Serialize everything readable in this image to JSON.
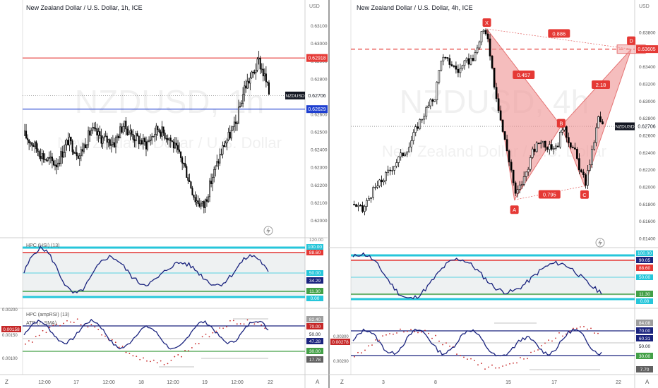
{
  "colors": {
    "bull": "#ffffff",
    "bear": "#000000",
    "red_level": "#e53935",
    "blue_level": "#1e3fd0",
    "dashed": "#e53935",
    "pattern_fill": "#ef9a9a",
    "pattern_stroke": "#e57373",
    "osc_line": "#1a237e",
    "cyan": "#26c6da",
    "green": "#43a047",
    "axis_text": "#555555"
  },
  "left": {
    "title": "New Zealand Dollar / U.S. Dollar, 1h, ICE",
    "watermark": "NZDUSD, 1h",
    "watermark_sub": "New Zealand Dollar / U.S. Dollar",
    "currency": "USD",
    "price_ticks": [
      "0.63100",
      "0.63000",
      "0.62900",
      "0.62800",
      "0.62700",
      "0.62600",
      "0.62500",
      "0.62400",
      "0.62300",
      "0.62200",
      "0.62100",
      "0.62000"
    ],
    "red_level": "0.62918",
    "symbol_tag": "NZDUSD",
    "last_price": "0.62706",
    "blue_level": "0.62629",
    "hsi": {
      "legend": "HPC (HSI) (13)",
      "ticks": [
        "120.00",
        "100.00",
        "88.60",
        "50.00",
        "34.29",
        "11.30",
        "0.00"
      ],
      "tags": {
        "top": "100.00",
        "red": "88.60",
        "mid": "50.00",
        "value": "34.29",
        "green": "11.30",
        "zero": "0.00"
      }
    },
    "amp": {
      "legend1": "HPC (ampRSI) (13)",
      "legend2": "ATR (7, SMA)",
      "left_ticks": [
        "0.00200",
        "0.00150",
        "0.00100"
      ],
      "atr_value": "0.00158",
      "tags": [
        "82.40",
        "70.00",
        "50.00",
        "47.28",
        "30.00",
        "17.78"
      ]
    },
    "x_labels": [
      "12:00",
      "17",
      "12:00",
      "18",
      "12:00",
      "19",
      "12:00",
      "22"
    ],
    "x_corner": "Z",
    "x_axis_btn": "A"
  },
  "right": {
    "title": "New Zealand Dollar / U.S. Dollar, 4h, ICE",
    "watermark": "NZDUSD, 4h",
    "watermark_sub": "New Zealand Dollar / U.S. Dollar",
    "currency": "USD",
    "price_ticks": [
      "0.63800",
      "0.63600",
      "0.63400",
      "0.63200",
      "0.63000",
      "0.62800",
      "0.62600",
      "0.62400",
      "0.62200",
      "0.62000",
      "0.61800",
      "0.61600",
      "0.61400"
    ],
    "dashed_level": "0.63605",
    "symbol_tag": "NZDUSD",
    "last_price": "0.62706",
    "pattern": {
      "points": {
        "X": "X",
        "A": "A",
        "B": "B",
        "C": "C",
        "D": "D"
      },
      "ratios": {
        "xd": "0.886",
        "ab": "0.457",
        "bc": "0.795",
        "cd": "2.18"
      }
    },
    "hsi": {
      "ticks": [
        "100.00",
        "90.05",
        "88.60",
        "50.00",
        "11.30",
        "0.00"
      ],
      "tags": {
        "top": "100.00",
        "value": "90.05",
        "red": "88.60",
        "mid": "50.00",
        "green": "11.30",
        "zero": "0.00"
      }
    },
    "amp": {
      "left_ticks": [
        "0.00300",
        "0.00200"
      ],
      "atr_value": "0.00278",
      "tags": [
        "84.08",
        "70.00",
        "60.31",
        "50.00",
        "30.00",
        "7.70"
      ]
    },
    "x_labels": [
      "3",
      "8",
      "15",
      "17",
      "22"
    ],
    "x_corner": "Z",
    "x_axis_btn": "A"
  },
  "chart_data": [
    {
      "type": "candlestick",
      "title": "New Zealand Dollar / U.S. Dollar, 1h, ICE",
      "ylim": [
        0.6195,
        0.6315
      ],
      "levels": {
        "red": 0.62918,
        "blue": 0.62629,
        "last": 0.62706
      },
      "waypoints": [
        [
          0,
          0.6248
        ],
        [
          6,
          0.6243
        ],
        [
          14,
          0.6235
        ],
        [
          22,
          0.6232
        ],
        [
          30,
          0.6245
        ],
        [
          38,
          0.6237
        ],
        [
          46,
          0.6251
        ],
        [
          54,
          0.6246
        ],
        [
          62,
          0.6244
        ],
        [
          68,
          0.6254
        ],
        [
          76,
          0.6247
        ],
        [
          84,
          0.6243
        ],
        [
          92,
          0.6252
        ],
        [
          100,
          0.6247
        ],
        [
          110,
          0.6232
        ],
        [
          118,
          0.6212
        ],
        [
          124,
          0.6208
        ],
        [
          130,
          0.6225
        ],
        [
          138,
          0.6243
        ],
        [
          146,
          0.6254
        ],
        [
          152,
          0.6275
        ],
        [
          158,
          0.6283
        ],
        [
          162,
          0.629
        ],
        [
          166,
          0.6281
        ],
        [
          169,
          0.6272
        ]
      ],
      "x_tick_labels": [
        "12:00",
        "17",
        "12:00",
        "18",
        "12:00",
        "19",
        "12:00",
        "22"
      ]
    },
    {
      "type": "candlestick",
      "title": "New Zealand Dollar / U.S. Dollar, 4h, ICE",
      "ylim": [
        0.614,
        0.6398
      ],
      "levels": {
        "dashed": 0.63605,
        "last": 0.62706
      },
      "waypoints": [
        [
          0,
          0.618
        ],
        [
          4,
          0.6172
        ],
        [
          8,
          0.6192
        ],
        [
          14,
          0.621
        ],
        [
          20,
          0.623
        ],
        [
          26,
          0.6248
        ],
        [
          30,
          0.6272
        ],
        [
          34,
          0.629
        ],
        [
          38,
          0.6305
        ],
        [
          41,
          0.635
        ],
        [
          45,
          0.6345
        ],
        [
          49,
          0.6335
        ],
        [
          53,
          0.6345
        ],
        [
          57,
          0.6352
        ],
        [
          60,
          0.638
        ],
        [
          63,
          0.6375
        ],
        [
          66,
          0.632
        ],
        [
          70,
          0.6265
        ],
        [
          74,
          0.622
        ],
        [
          76,
          0.619
        ],
        [
          80,
          0.621
        ],
        [
          84,
          0.624
        ],
        [
          88,
          0.6255
        ],
        [
          92,
          0.6245
        ],
        [
          96,
          0.625
        ],
        [
          98,
          0.6271
        ],
        [
          101,
          0.6255
        ],
        [
          104,
          0.624
        ],
        [
          107,
          0.6215
        ],
        [
          109,
          0.6205
        ],
        [
          112,
          0.624
        ],
        [
          115,
          0.628
        ],
        [
          117,
          0.6271
        ]
      ],
      "pattern_prices": {
        "X": 0.6384,
        "A": 0.6185,
        "B": 0.6271,
        "C": 0.6201,
        "D": 0.63605
      },
      "pattern_ratios": {
        "XD": 0.886,
        "AB": 0.457,
        "BC": 0.795,
        "CD": 2.18
      },
      "x_tick_labels": [
        "3",
        "8",
        "15",
        "17",
        "22"
      ]
    }
  ]
}
